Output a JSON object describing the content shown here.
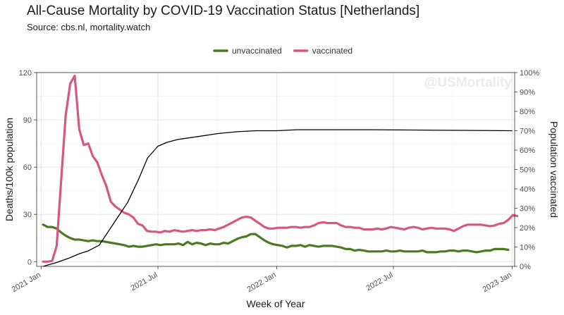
{
  "chart_data": {
    "type": "line",
    "title": "All-Cause Mortality by COVID-19 Vaccination Status [Netherlands]",
    "subtitle": "Source: cbs.nl, mortality.watch",
    "watermark": "@USMortality",
    "xlabel": "Week of Year",
    "ylabel": "Deaths/100k population",
    "y2label": "Population vaccinated",
    "xlim": [
      "2020-12-25",
      "2023-01-05"
    ],
    "ylim": [
      -3,
      120
    ],
    "y2lim": [
      0,
      100
    ],
    "x_ticks": [
      {
        "date": "2021-01-01",
        "label": "2021 Jan"
      },
      {
        "date": "2021-07-01",
        "label": "2021 Jul"
      },
      {
        "date": "2022-01-01",
        "label": "2022 Jan"
      },
      {
        "date": "2022-07-01",
        "label": "2022 Jul"
      },
      {
        "date": "2023-01-01",
        "label": "2023 Jan"
      }
    ],
    "y_ticks": [
      0,
      30,
      60,
      90,
      120
    ],
    "y2_ticks": [
      "0%",
      "10%",
      "20%",
      "30%",
      "40%",
      "50%",
      "60%",
      "70%",
      "80%",
      "90%",
      "100%"
    ],
    "grid": true,
    "legend_position": "top",
    "series": [
      {
        "name": "unvaccinated",
        "color": "#4a7a22",
        "axis": "left",
        "points": [
          [
            "2021-01-04",
            23.5
          ],
          [
            "2021-01-11",
            22.0
          ],
          [
            "2021-01-18",
            22.0
          ],
          [
            "2021-01-25",
            21.0
          ],
          [
            "2021-02-01",
            18.5
          ],
          [
            "2021-02-08",
            16.5
          ],
          [
            "2021-02-15",
            15.0
          ],
          [
            "2021-02-22",
            14.0
          ],
          [
            "2021-03-01",
            14.0
          ],
          [
            "2021-03-08",
            13.5
          ],
          [
            "2021-03-15",
            13.0
          ],
          [
            "2021-03-22",
            13.5
          ],
          [
            "2021-03-29",
            13.0
          ],
          [
            "2021-04-05",
            13.0
          ],
          [
            "2021-04-12",
            12.5
          ],
          [
            "2021-04-19",
            12.0
          ],
          [
            "2021-04-26",
            11.5
          ],
          [
            "2021-05-03",
            11.0
          ],
          [
            "2021-05-10",
            10.5
          ],
          [
            "2021-05-17",
            9.5
          ],
          [
            "2021-05-24",
            10.0
          ],
          [
            "2021-05-31",
            9.5
          ],
          [
            "2021-06-07",
            9.5
          ],
          [
            "2021-06-14",
            10.0
          ],
          [
            "2021-06-21",
            10.5
          ],
          [
            "2021-06-28",
            11.0
          ],
          [
            "2021-07-05",
            10.5
          ],
          [
            "2021-07-12",
            11.0
          ],
          [
            "2021-07-19",
            11.0
          ],
          [
            "2021-07-26",
            11.0
          ],
          [
            "2021-08-02",
            11.5
          ],
          [
            "2021-08-09",
            10.5
          ],
          [
            "2021-08-16",
            12.5
          ],
          [
            "2021-08-23",
            11.0
          ],
          [
            "2021-08-30",
            12.0
          ],
          [
            "2021-09-06",
            11.5
          ],
          [
            "2021-09-13",
            10.5
          ],
          [
            "2021-09-20",
            11.5
          ],
          [
            "2021-09-27",
            11.0
          ],
          [
            "2021-10-04",
            11.0
          ],
          [
            "2021-10-11",
            12.0
          ],
          [
            "2021-10-18",
            11.5
          ],
          [
            "2021-10-25",
            13.0
          ],
          [
            "2021-11-01",
            14.5
          ],
          [
            "2021-11-08",
            15.5
          ],
          [
            "2021-11-15",
            16.0
          ],
          [
            "2021-11-22",
            17.5
          ],
          [
            "2021-11-29",
            17.5
          ],
          [
            "2021-12-06",
            15.5
          ],
          [
            "2021-12-13",
            13.5
          ],
          [
            "2021-12-20",
            12.0
          ],
          [
            "2021-12-27",
            11.0
          ],
          [
            "2022-01-03",
            10.5
          ],
          [
            "2022-01-10",
            10.0
          ],
          [
            "2022-01-17",
            9.0
          ],
          [
            "2022-01-24",
            10.0
          ],
          [
            "2022-01-31",
            10.0
          ],
          [
            "2022-02-07",
            10.5
          ],
          [
            "2022-02-14",
            9.5
          ],
          [
            "2022-02-21",
            10.5
          ],
          [
            "2022-02-28",
            10.0
          ],
          [
            "2022-03-07",
            9.5
          ],
          [
            "2022-03-14",
            10.0
          ],
          [
            "2022-03-21",
            10.0
          ],
          [
            "2022-03-28",
            10.0
          ],
          [
            "2022-04-04",
            9.5
          ],
          [
            "2022-04-11",
            9.0
          ],
          [
            "2022-04-18",
            8.0
          ],
          [
            "2022-04-25",
            8.0
          ],
          [
            "2022-05-02",
            7.0
          ],
          [
            "2022-05-09",
            7.5
          ],
          [
            "2022-05-16",
            7.0
          ],
          [
            "2022-05-23",
            6.5
          ],
          [
            "2022-05-30",
            6.5
          ],
          [
            "2022-06-06",
            6.5
          ],
          [
            "2022-06-13",
            6.5
          ],
          [
            "2022-06-20",
            7.0
          ],
          [
            "2022-06-27",
            6.5
          ],
          [
            "2022-07-04",
            6.5
          ],
          [
            "2022-07-11",
            7.0
          ],
          [
            "2022-07-18",
            6.5
          ],
          [
            "2022-07-25",
            6.5
          ],
          [
            "2022-08-01",
            6.5
          ],
          [
            "2022-08-08",
            6.5
          ],
          [
            "2022-08-15",
            7.0
          ],
          [
            "2022-08-22",
            6.0
          ],
          [
            "2022-08-29",
            6.0
          ],
          [
            "2022-09-05",
            6.0
          ],
          [
            "2022-09-12",
            6.5
          ],
          [
            "2022-09-19",
            6.5
          ],
          [
            "2022-09-26",
            7.0
          ],
          [
            "2022-10-03",
            7.0
          ],
          [
            "2022-10-10",
            6.5
          ],
          [
            "2022-10-17",
            7.0
          ],
          [
            "2022-10-24",
            7.0
          ],
          [
            "2022-10-31",
            6.5
          ],
          [
            "2022-11-07",
            6.0
          ],
          [
            "2022-11-14",
            6.5
          ],
          [
            "2022-11-21",
            7.0
          ],
          [
            "2022-11-28",
            7.0
          ],
          [
            "2022-12-05",
            8.0
          ],
          [
            "2022-12-12",
            8.0
          ],
          [
            "2022-12-19",
            8.0
          ],
          [
            "2022-12-26",
            7.5
          ]
        ]
      },
      {
        "name": "vaccinated",
        "color": "#d65785",
        "axis": "left",
        "points": [
          [
            "2021-01-04",
            0.0
          ],
          [
            "2021-01-11",
            0.0
          ],
          [
            "2021-01-18",
            0.5
          ],
          [
            "2021-01-25",
            10.0
          ],
          [
            "2021-02-01",
            52.0
          ],
          [
            "2021-02-08",
            93.0
          ],
          [
            "2021-02-15",
            113.0
          ],
          [
            "2021-02-22",
            118.0
          ],
          [
            "2021-03-01",
            84.0
          ],
          [
            "2021-03-08",
            74.0
          ],
          [
            "2021-03-15",
            75.0
          ],
          [
            "2021-03-22",
            67.0
          ],
          [
            "2021-03-29",
            63.0
          ],
          [
            "2021-04-05",
            55.0
          ],
          [
            "2021-04-12",
            48.0
          ],
          [
            "2021-04-19",
            38.0
          ],
          [
            "2021-04-26",
            35.0
          ],
          [
            "2021-05-03",
            33.0
          ],
          [
            "2021-05-10",
            31.0
          ],
          [
            "2021-05-17",
            30.0
          ],
          [
            "2021-05-24",
            28.0
          ],
          [
            "2021-05-31",
            24.0
          ],
          [
            "2021-06-07",
            23.0
          ],
          [
            "2021-06-14",
            19.5
          ],
          [
            "2021-06-21",
            19.0
          ],
          [
            "2021-06-28",
            19.0
          ],
          [
            "2021-07-05",
            18.5
          ],
          [
            "2021-07-12",
            19.5
          ],
          [
            "2021-07-19",
            19.0
          ],
          [
            "2021-07-26",
            20.0
          ],
          [
            "2021-08-02",
            19.5
          ],
          [
            "2021-08-09",
            19.0
          ],
          [
            "2021-08-16",
            19.5
          ],
          [
            "2021-08-23",
            20.0
          ],
          [
            "2021-08-30",
            19.5
          ],
          [
            "2021-09-06",
            20.0
          ],
          [
            "2021-09-13",
            20.0
          ],
          [
            "2021-09-20",
            20.5
          ],
          [
            "2021-09-27",
            20.0
          ],
          [
            "2021-10-04",
            21.0
          ],
          [
            "2021-10-11",
            22.0
          ],
          [
            "2021-10-18",
            23.5
          ],
          [
            "2021-10-25",
            25.0
          ],
          [
            "2021-11-01",
            26.5
          ],
          [
            "2021-11-08",
            28.0
          ],
          [
            "2021-11-15",
            28.5
          ],
          [
            "2021-11-22",
            28.0
          ],
          [
            "2021-11-29",
            26.0
          ],
          [
            "2021-12-06",
            24.0
          ],
          [
            "2021-12-13",
            22.0
          ],
          [
            "2021-12-20",
            21.0
          ],
          [
            "2021-12-27",
            21.0
          ],
          [
            "2022-01-03",
            21.5
          ],
          [
            "2022-01-10",
            21.5
          ],
          [
            "2022-01-17",
            21.5
          ],
          [
            "2022-01-24",
            22.0
          ],
          [
            "2022-01-31",
            22.0
          ],
          [
            "2022-02-07",
            21.5
          ],
          [
            "2022-02-14",
            22.0
          ],
          [
            "2022-02-21",
            22.0
          ],
          [
            "2022-02-28",
            23.0
          ],
          [
            "2022-03-07",
            24.5
          ],
          [
            "2022-03-14",
            25.0
          ],
          [
            "2022-03-21",
            24.5
          ],
          [
            "2022-03-28",
            24.5
          ],
          [
            "2022-04-04",
            24.5
          ],
          [
            "2022-04-11",
            23.0
          ],
          [
            "2022-04-18",
            22.0
          ],
          [
            "2022-04-25",
            22.0
          ],
          [
            "2022-05-02",
            21.5
          ],
          [
            "2022-05-09",
            21.5
          ],
          [
            "2022-05-16",
            20.5
          ],
          [
            "2022-05-23",
            20.5
          ],
          [
            "2022-05-30",
            20.5
          ],
          [
            "2022-06-06",
            21.0
          ],
          [
            "2022-06-13",
            20.5
          ],
          [
            "2022-06-20",
            21.0
          ],
          [
            "2022-06-27",
            22.0
          ],
          [
            "2022-07-04",
            21.5
          ],
          [
            "2022-07-11",
            21.0
          ],
          [
            "2022-07-18",
            20.5
          ],
          [
            "2022-07-25",
            21.5
          ],
          [
            "2022-08-01",
            22.0
          ],
          [
            "2022-08-08",
            21.5
          ],
          [
            "2022-08-15",
            20.5
          ],
          [
            "2022-08-22",
            21.0
          ],
          [
            "2022-08-29",
            21.5
          ],
          [
            "2022-09-05",
            21.0
          ],
          [
            "2022-09-12",
            21.0
          ],
          [
            "2022-09-19",
            21.0
          ],
          [
            "2022-09-26",
            20.5
          ],
          [
            "2022-10-03",
            19.5
          ],
          [
            "2022-10-10",
            21.0
          ],
          [
            "2022-10-17",
            22.5
          ],
          [
            "2022-10-24",
            23.5
          ],
          [
            "2022-10-31",
            23.5
          ],
          [
            "2022-11-07",
            23.5
          ],
          [
            "2022-11-14",
            23.5
          ],
          [
            "2022-11-21",
            23.0
          ],
          [
            "2022-11-28",
            22.5
          ],
          [
            "2022-12-05",
            23.0
          ],
          [
            "2022-12-12",
            24.0
          ],
          [
            "2022-12-19",
            24.5
          ],
          [
            "2022-12-26",
            26.5
          ],
          [
            "2023-01-02",
            29.5
          ],
          [
            "2023-01-09",
            29.0
          ]
        ]
      },
      {
        "name": "",
        "color": "#000000",
        "axis": "right",
        "points": [
          [
            "2021-01-04",
            0.0
          ],
          [
            "2021-01-25",
            2.0
          ],
          [
            "2021-02-15",
            4.5
          ],
          [
            "2021-03-01",
            6.5
          ],
          [
            "2021-03-15",
            8.0
          ],
          [
            "2021-04-01",
            11.0
          ],
          [
            "2021-04-15",
            18.0
          ],
          [
            "2021-05-01",
            26.0
          ],
          [
            "2021-05-15",
            33.0
          ],
          [
            "2021-06-01",
            45.0
          ],
          [
            "2021-06-15",
            56.0
          ],
          [
            "2021-07-01",
            62.0
          ],
          [
            "2021-07-15",
            64.0
          ],
          [
            "2021-08-01",
            65.5
          ],
          [
            "2021-09-01",
            67.0
          ],
          [
            "2021-10-01",
            68.5
          ],
          [
            "2021-11-01",
            69.5
          ],
          [
            "2021-12-01",
            70.0
          ],
          [
            "2022-01-01",
            70.0
          ],
          [
            "2022-02-01",
            70.5
          ],
          [
            "2022-06-01",
            70.5
          ],
          [
            "2022-10-01",
            70.2
          ],
          [
            "2023-01-01",
            70.0
          ]
        ]
      }
    ]
  }
}
